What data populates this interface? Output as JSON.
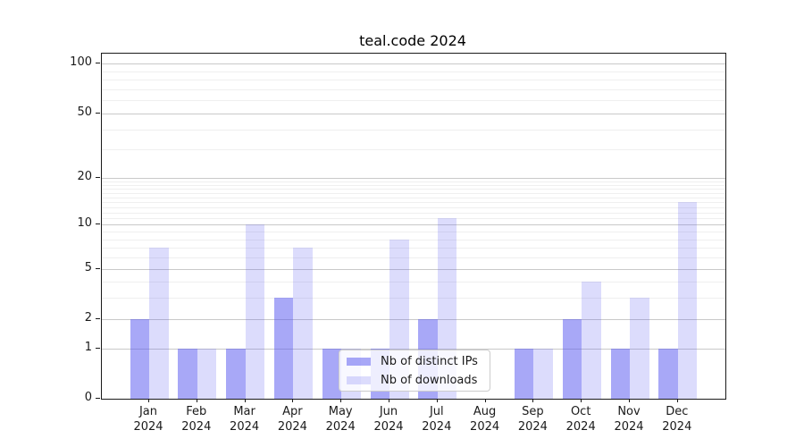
{
  "title": "teal.code 2024",
  "chart_data": {
    "type": "bar",
    "title": "teal.code 2024",
    "xlabel": "",
    "ylabel": "",
    "year_label": "2024",
    "categories": [
      "Jan",
      "Feb",
      "Mar",
      "Apr",
      "May",
      "Jun",
      "Jul",
      "Aug",
      "Sep",
      "Oct",
      "Nov",
      "Dec"
    ],
    "series": [
      {
        "name": "Nb of distinct IPs",
        "color": "rgba(88,88,240,0.52)",
        "values": [
          2,
          1,
          1,
          3,
          1,
          1,
          2,
          0,
          1,
          2,
          1,
          1
        ]
      },
      {
        "name": "Nb of downloads",
        "color": "rgba(88,88,240,0.21)",
        "values": [
          7,
          1,
          10,
          7,
          1,
          8,
          11,
          0,
          1,
          4,
          3,
          14
        ]
      }
    ],
    "y_scale": "log10(1+v)",
    "y_ticks": [
      0,
      1,
      2,
      5,
      10,
      20,
      50,
      100
    ],
    "y_minor_gridlines": [
      3,
      4,
      6,
      7,
      8,
      9,
      11,
      12,
      13,
      14,
      15,
      16,
      17,
      18,
      19,
      30,
      40,
      60,
      70,
      80,
      90
    ],
    "ylim": [
      0,
      115
    ],
    "grid": "horizontal",
    "legend_position": "inside lower-center"
  }
}
